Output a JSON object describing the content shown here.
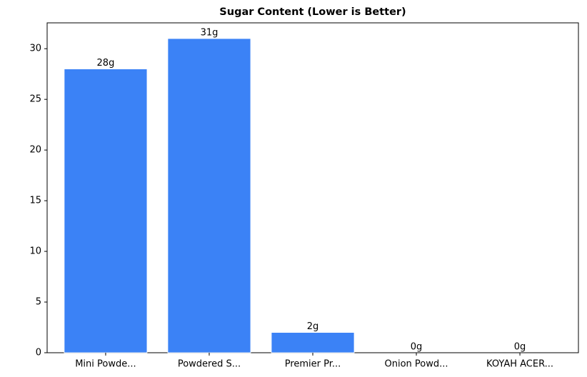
{
  "chart_data": {
    "type": "bar",
    "title": "Sugar Content (Lower is Better)",
    "categories": [
      "Mini Powde...",
      "Powdered S...",
      "Premier Pr...",
      "Onion Powd...",
      "KOYAH ACER..."
    ],
    "values": [
      28,
      31,
      2,
      0,
      0
    ],
    "value_labels": [
      "28g",
      "31g",
      "2g",
      "0g",
      "0g"
    ],
    "color": "#3b82f6",
    "ylim": [
      0,
      32.55
    ],
    "yticks": [
      0,
      5,
      10,
      15,
      20,
      25,
      30
    ],
    "grid": false
  }
}
